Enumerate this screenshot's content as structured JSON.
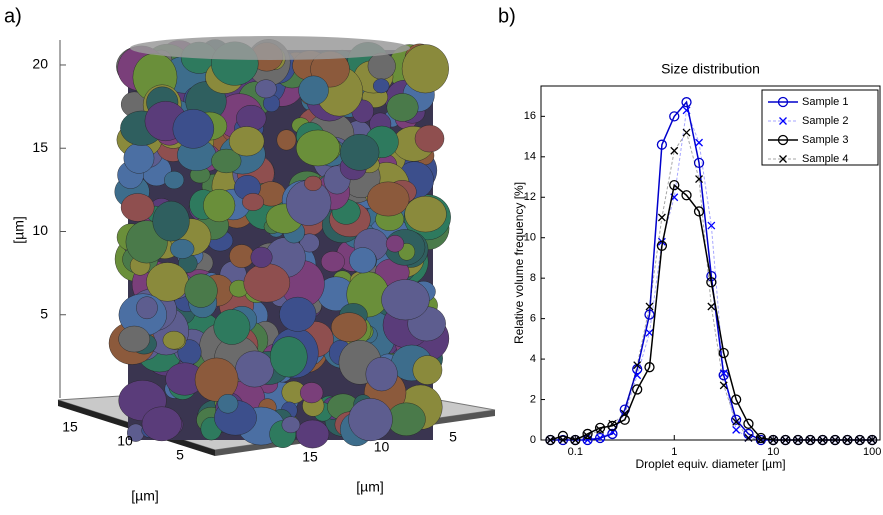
{
  "panel_labels": [
    "a)",
    "b)"
  ],
  "chart_data": [
    {
      "type": "volume",
      "zlabel": "[µm]",
      "xlabel": "[µm]",
      "ylabel": "[µm]",
      "zlim": [
        0,
        21.5
      ],
      "zticks": [
        5,
        10,
        15,
        20
      ],
      "xlim": [
        0,
        18
      ],
      "xticks": [
        15,
        10,
        5
      ],
      "ylim": [
        0,
        18
      ],
      "yticks": [
        15,
        10,
        5
      ]
    },
    {
      "type": "line",
      "title": "Size distribution",
      "x_label": "Droplet equiv. diameter [µm]",
      "y_label": "Relative volume frequency [%]",
      "log_x": true,
      "legend": "upper right",
      "x": [
        0.056,
        0.075,
        0.1,
        0.133,
        0.178,
        0.237,
        0.316,
        0.422,
        0.562,
        0.75,
        1,
        1.33,
        1.78,
        2.37,
        3.16,
        4.22,
        5.62,
        7.5,
        10,
        13.3,
        17.8,
        23.7,
        31.6,
        42.2,
        56.2,
        75,
        100
      ],
      "xlim": [
        0.045,
        120
      ],
      "xticks": [
        0.1,
        1,
        10,
        100
      ],
      "ylim": [
        0,
        17.5
      ],
      "yticks": [
        0,
        2,
        4,
        6,
        8,
        10,
        12,
        14,
        16
      ],
      "series": [
        {
          "name": "Sample 1",
          "color": "#0000cc",
          "marker": "o",
          "linestyle": "solid",
          "values": [
            0,
            0,
            0,
            0,
            0.1,
            0.3,
            1.5,
            3.5,
            6.2,
            14.6,
            16,
            16.7,
            13.7,
            8.1,
            3.2,
            1,
            0.3,
            0,
            0,
            0,
            0,
            0,
            0,
            0,
            0,
            0,
            0
          ]
        },
        {
          "name": "Sample 2",
          "color": "#0000ff",
          "marker": "x",
          "linestyle": "dashed",
          "values": [
            0,
            0,
            0,
            0,
            0.1,
            0.4,
            1.3,
            3.2,
            5.3,
            9.8,
            12,
            16.3,
            14.7,
            10.6,
            3.3,
            0.5,
            0.1,
            0,
            0,
            0,
            0,
            0,
            0,
            0,
            0,
            0,
            0
          ]
        },
        {
          "name": "Sample 3",
          "color": "#000000",
          "marker": "o",
          "linestyle": "solid",
          "values": [
            0,
            0.2,
            0,
            0.3,
            0.6,
            0.7,
            1,
            2.5,
            3.6,
            9.6,
            12.6,
            12.1,
            11.3,
            7.8,
            4.3,
            2,
            0.8,
            0.1,
            0,
            0,
            0,
            0,
            0,
            0,
            0,
            0,
            0
          ]
        },
        {
          "name": "Sample 4",
          "color": "#000000",
          "marker": "x",
          "linestyle": "dashed",
          "values": [
            0,
            0,
            0,
            0.2,
            0.5,
            0.8,
            1.3,
            3.7,
            6.6,
            11,
            14.3,
            15.2,
            12.9,
            6.6,
            2.7,
            0.9,
            0.1,
            0,
            0,
            0,
            0,
            0,
            0,
            0,
            0,
            0,
            0
          ]
        }
      ]
    }
  ]
}
